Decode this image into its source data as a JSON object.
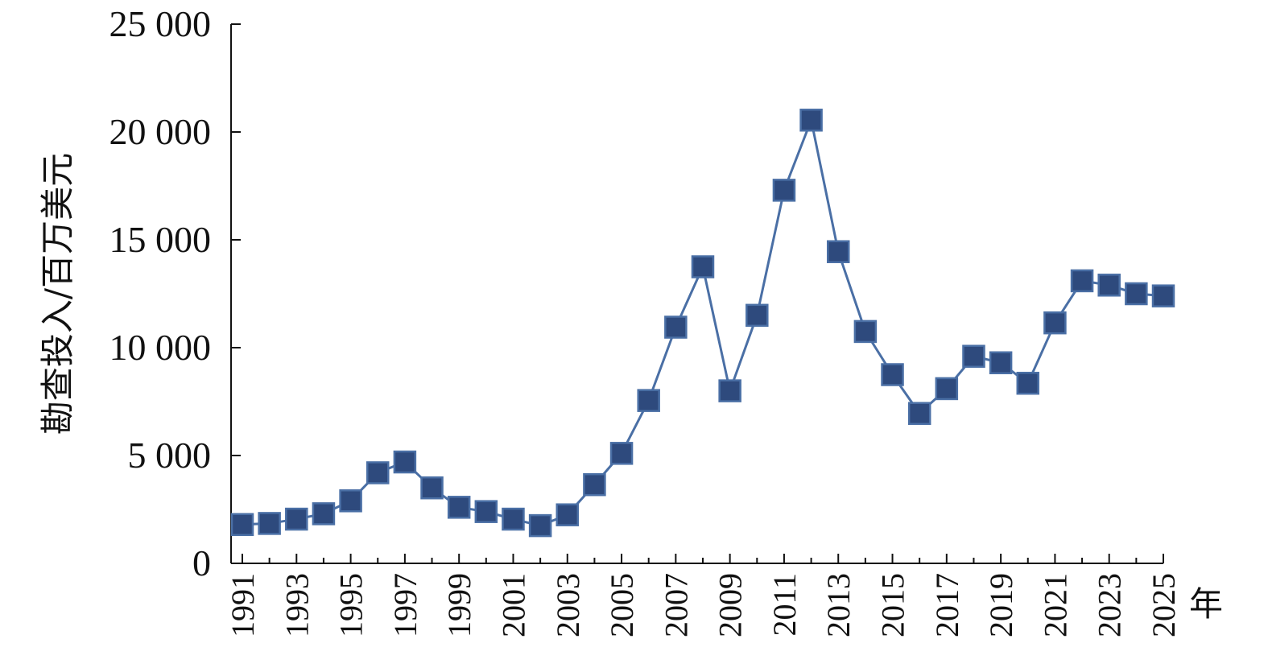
{
  "chart_data": {
    "type": "line",
    "title": "",
    "xlabel": "年",
    "ylabel": "勘查投入/百万美元",
    "x": [
      1991,
      1992,
      1993,
      1994,
      1995,
      1996,
      1997,
      1998,
      1999,
      2000,
      2001,
      2002,
      2003,
      2004,
      2005,
      2006,
      2007,
      2008,
      2009,
      2010,
      2011,
      2012,
      2013,
      2014,
      2015,
      2016,
      2017,
      2018,
      2019,
      2020,
      2021,
      2022,
      2023,
      2024,
      2025
    ],
    "series": [
      {
        "name": "",
        "values": [
          1800,
          1850,
          2050,
          2300,
          2900,
          4200,
          4700,
          3500,
          2600,
          2400,
          2050,
          1750,
          2250,
          3650,
          5100,
          7550,
          10950,
          13750,
          8000,
          11500,
          17300,
          20550,
          14450,
          10750,
          8750,
          6950,
          8100,
          9600,
          9300,
          8350,
          11150,
          13100,
          12900,
          12500,
          12400
        ]
      }
    ],
    "x_tick_labels": [
      "1991",
      "1993",
      "1995",
      "1997",
      "1999",
      "2001",
      "2003",
      "2005",
      "2007",
      "2009",
      "2011",
      "2013",
      "2015",
      "2017",
      "2019",
      "2021",
      "2023",
      "2025"
    ],
    "y_tick_labels": [
      "0",
      "5 000",
      "10 000",
      "15 000",
      "20 000",
      "25 000"
    ],
    "y_ticks": [
      0,
      5000,
      10000,
      15000,
      20000,
      25000
    ],
    "ylim": [
      0,
      25000
    ],
    "xlim": [
      1991,
      2025
    ],
    "grid": false,
    "legend": "none",
    "colors": {
      "line": "#4a6fa5",
      "marker_fill": "#2e4a7d",
      "marker_stroke": "#4a6fa5",
      "axis": "#111111"
    }
  }
}
